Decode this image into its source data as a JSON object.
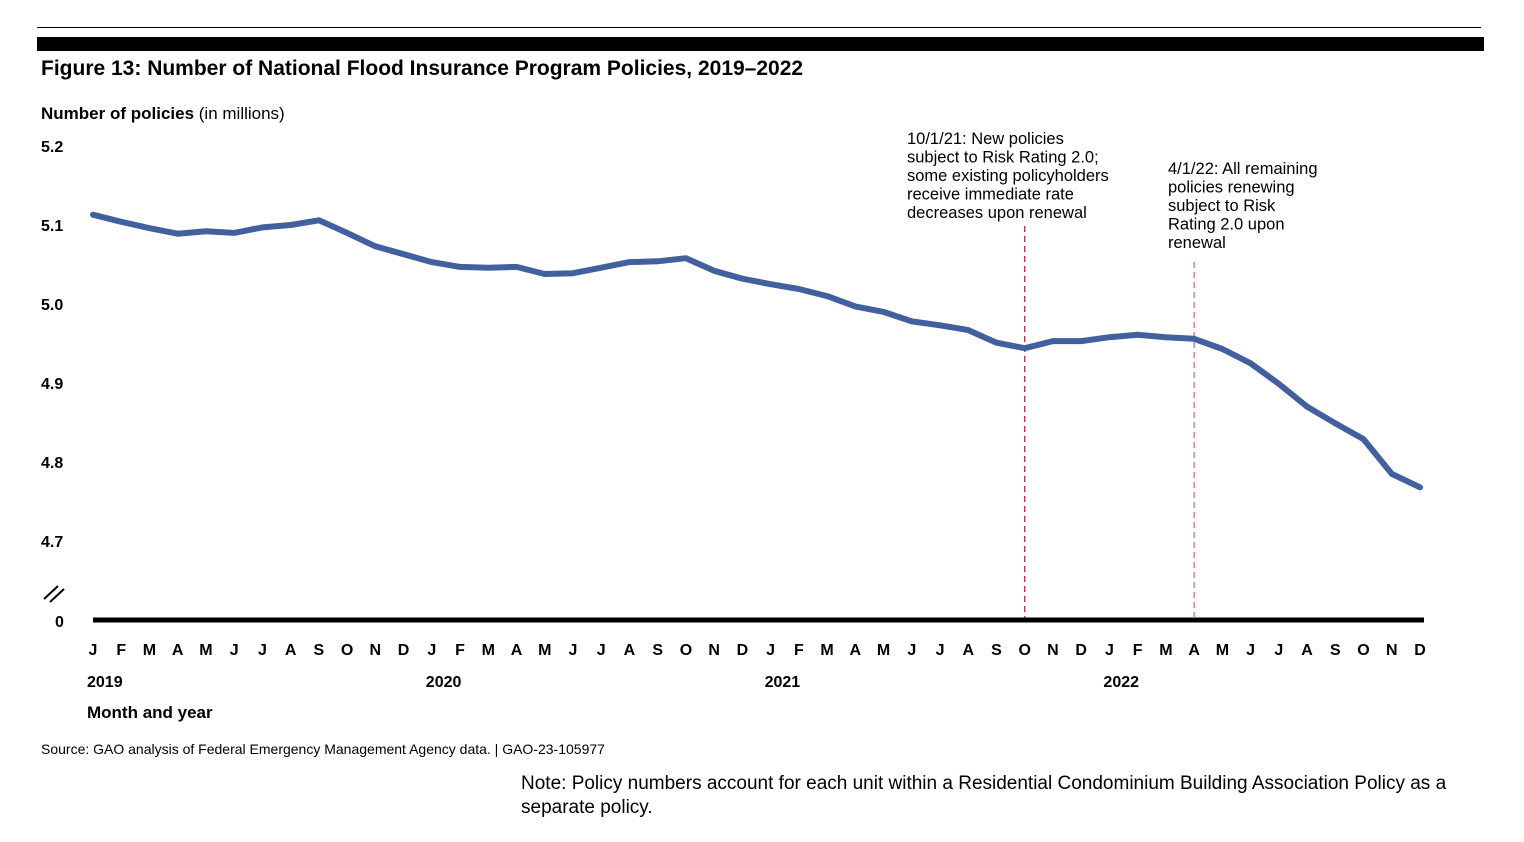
{
  "chart_data": {
    "type": "line",
    "title": "Figure 13: Number of National Flood Insurance Program Policies, 2019–2022",
    "ylabel_bold": "Number of policies",
    "ylabel_unit": "(in millions)",
    "xlabel": "Month and year",
    "ylim": [
      4.7,
      5.2
    ],
    "yticks": [
      "5.2",
      "5.1",
      "5.0",
      "4.9",
      "4.8",
      "4.7"
    ],
    "ytick_values": [
      5.2,
      5.1,
      5.0,
      4.9,
      4.8,
      4.7
    ],
    "y_zero_label": "0",
    "axis_break": true,
    "grid": false,
    "month_labels": [
      "J",
      "F",
      "M",
      "A",
      "M",
      "J",
      "J",
      "A",
      "S",
      "O",
      "N",
      "D"
    ],
    "years": [
      "2019",
      "2020",
      "2021",
      "2022"
    ],
    "series": [
      {
        "color": "#42609E",
        "values": [
          5.113,
          5.104,
          5.096,
          5.089,
          5.092,
          5.09,
          5.097,
          5.1,
          5.106,
          5.09,
          5.073,
          5.063,
          5.053,
          5.047,
          5.046,
          5.047,
          5.038,
          5.039,
          5.046,
          5.053,
          5.054,
          5.058,
          5.042,
          5.032,
          5.025,
          5.019,
          5.01,
          4.997,
          4.99,
          4.978,
          4.973,
          4.967,
          4.951,
          4.944,
          4.953,
          4.953,
          4.958,
          4.961,
          4.958,
          4.956,
          4.943,
          4.925,
          4.899,
          4.87,
          4.849,
          4.829,
          4.785,
          4.768
        ]
      }
    ],
    "annotations": [
      {
        "month_index": 33,
        "color": "#B0263A",
        "lines": [
          "10/1/21: New policies",
          "subject to Risk Rating 2.0;",
          "some existing policyholders",
          "receive immediate rate",
          "decreases upon renewal"
        ]
      },
      {
        "month_index": 39,
        "color": "#D07080",
        "lines": [
          "4/1/22: All remaining",
          "policies renewing",
          "subject to Risk",
          "Rating 2.0 upon",
          "renewal"
        ]
      }
    ]
  },
  "source": "Source: GAO analysis of Federal Emergency Management Agency data.  |  GAO-23-105977",
  "note": "Note: Policy numbers account for each unit within a Residential Condominium Building Association Policy as a separate policy."
}
